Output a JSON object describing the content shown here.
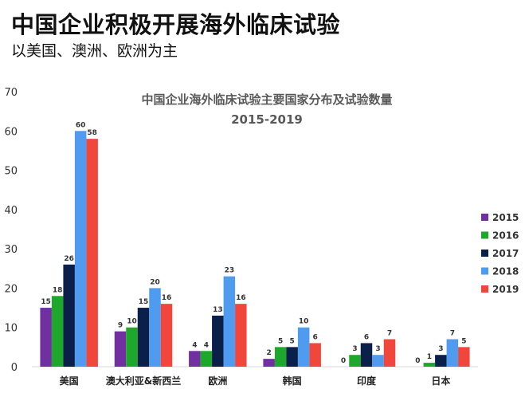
{
  "page": {
    "headline": "中国企业积极开展海外临床试验",
    "subheadline": "以美国、澳洲、欧洲为主"
  },
  "chart_data": {
    "type": "bar",
    "title": "中国企业海外临床试验主要国家分布及试验数量",
    "subtitle": "2015-2019",
    "xlabel": "",
    "ylabel": "",
    "ylim": [
      0,
      70
    ],
    "yticks": [
      0,
      10,
      20,
      30,
      40,
      50,
      60,
      70
    ],
    "grid": false,
    "legend_position": "right",
    "categories": [
      "美国",
      "澳大利亚&新西兰",
      "欧洲",
      "韩国",
      "印度",
      "日本"
    ],
    "series": [
      {
        "name": "2015",
        "color": "#7030A0",
        "values": [
          15,
          9,
          4,
          2,
          0,
          0
        ]
      },
      {
        "name": "2016",
        "color": "#1EA82B",
        "values": [
          18,
          10,
          4,
          5,
          3,
          1
        ]
      },
      {
        "name": "2017",
        "color": "#0B1F4B",
        "values": [
          26,
          15,
          13,
          5,
          6,
          3
        ]
      },
      {
        "name": "2018",
        "color": "#4F9BF0",
        "values": [
          60,
          20,
          23,
          10,
          3,
          7
        ]
      },
      {
        "name": "2019",
        "color": "#F0463C",
        "values": [
          58,
          16,
          16,
          6,
          7,
          5
        ]
      }
    ]
  }
}
